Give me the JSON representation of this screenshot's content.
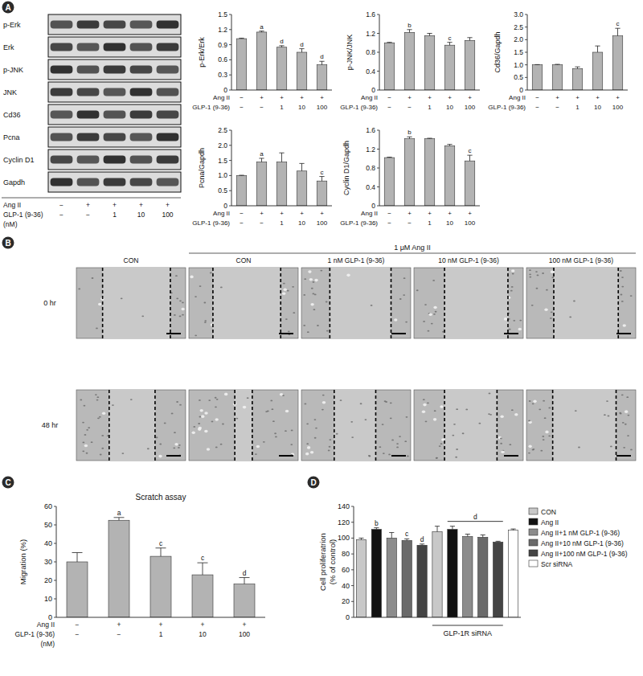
{
  "panel_labels": [
    "A",
    "B",
    "C",
    "D"
  ],
  "blot": {
    "row_labels": [
      "p-Erk",
      "Erk",
      "p-JNK",
      "JNK",
      "Cd36",
      "Pcna",
      "Cyclin D1",
      "Gapdh"
    ],
    "lane_rows": [
      "Ang II",
      "GLP-1 (9-36)"
    ],
    "lane_note": "(nM)",
    "lanes": [
      [
        "−",
        "−"
      ],
      [
        "+",
        "−"
      ],
      [
        "+",
        "1"
      ],
      [
        "+",
        "10"
      ],
      [
        "+",
        "100"
      ]
    ]
  },
  "scratch_images": {
    "header": "1 μM Ang II",
    "columns": [
      "CON",
      "CON",
      "1 nM GLP-1 (9-36)",
      "10 nM GLP-1 (9-36)",
      "100 nM GLP-1 (9-36)"
    ],
    "rows": [
      "0 hr",
      "48 hr"
    ]
  },
  "chart_data": [
    {
      "type": "bar",
      "y_label": "p-Erk/Erk",
      "categories": [
        [
          "−",
          "−"
        ],
        [
          "+",
          "−"
        ],
        [
          "+",
          "1"
        ],
        [
          "+",
          "10"
        ],
        [
          "+",
          "100"
        ]
      ],
      "category_rows": [
        "Ang II",
        "GLP-1 (9-36)"
      ],
      "values": [
        1.02,
        1.15,
        0.85,
        0.75,
        0.5
      ],
      "errors": [
        0.01,
        0.02,
        0.03,
        0.07,
        0.07
      ],
      "annotations": [
        null,
        "a",
        "d",
        "d",
        "d"
      ],
      "color": "#b3b3b3",
      "ylim": [
        0,
        1.5
      ],
      "yticks": [
        0,
        0.3,
        0.6,
        0.9,
        1.2,
        1.5
      ]
    },
    {
      "type": "bar",
      "y_label": "p-JNK/JNK",
      "categories": [
        [
          "−",
          "−"
        ],
        [
          "+",
          "−"
        ],
        [
          "+",
          "1"
        ],
        [
          "+",
          "10"
        ],
        [
          "+",
          "100"
        ]
      ],
      "category_rows": [
        "Ang II",
        "GLP-1 (9-36)"
      ],
      "values": [
        1.0,
        1.22,
        1.15,
        0.95,
        1.05
      ],
      "errors": [
        0.01,
        0.06,
        0.05,
        0.06,
        0.06
      ],
      "annotations": [
        null,
        "b",
        null,
        "c",
        null
      ],
      "color": "#b3b3b3",
      "ylim": [
        0,
        1.6
      ],
      "yticks": [
        0,
        0.4,
        0.8,
        1.2,
        1.6
      ]
    },
    {
      "type": "bar",
      "y_label": "Cd36/Gapdh",
      "categories": [
        [
          "−",
          "−"
        ],
        [
          "+",
          "−"
        ],
        [
          "+",
          "1"
        ],
        [
          "+",
          "10"
        ],
        [
          "+",
          "100"
        ]
      ],
      "category_rows": [
        "Ang II",
        "GLP-1 (9-36)"
      ],
      "values": [
        1.0,
        1.0,
        0.85,
        1.5,
        2.15
      ],
      "errors": [
        0.01,
        0.02,
        0.07,
        0.25,
        0.3
      ],
      "annotations": [
        null,
        null,
        null,
        null,
        "c"
      ],
      "color": "#b3b3b3",
      "ylim": [
        0,
        3
      ],
      "yticks": [
        0,
        0.5,
        {
          "value": 1,
          "label": "1.0"
        },
        1.5,
        {
          "value": 2,
          "label": "2.0"
        },
        2.5,
        {
          "value": 3,
          "label": "3.0"
        }
      ]
    },
    {
      "type": "bar",
      "y_label": "Pcna/Gapdh",
      "categories": [
        [
          "−",
          "−"
        ],
        [
          "+",
          "−"
        ],
        [
          "+",
          "1"
        ],
        [
          "+",
          "10"
        ],
        [
          "+",
          "100"
        ]
      ],
      "category_rows": [
        "Ang II",
        "GLP-1 (9-36)"
      ],
      "values": [
        1.0,
        1.45,
        1.45,
        1.15,
        0.82
      ],
      "errors": [
        0.01,
        0.12,
        0.3,
        0.25,
        0.15
      ],
      "annotations": [
        null,
        "a",
        null,
        null,
        "c"
      ],
      "color": "#b3b3b3",
      "ylim": [
        0,
        2.5
      ],
      "yticks": [
        0,
        0.5,
        {
          "value": 1,
          "label": "1.0"
        },
        1.5,
        {
          "value": 2,
          "label": "2.0"
        },
        2.5
      ]
    },
    {
      "type": "bar",
      "y_label": "Cyclin D1/Gapdh",
      "categories": [
        [
          "−",
          "−"
        ],
        [
          "+",
          "−"
        ],
        [
          "+",
          "1"
        ],
        [
          "+",
          "10"
        ],
        [
          "+",
          "100"
        ]
      ],
      "category_rows": [
        "Ang II",
        "GLP-1 (9-36)"
      ],
      "values": [
        1.02,
        1.42,
        1.42,
        1.27,
        0.95
      ],
      "errors": [
        0.01,
        0.04,
        0.01,
        0.03,
        0.12
      ],
      "annotations": [
        null,
        "b",
        null,
        null,
        "c"
      ],
      "color": "#b3b3b3",
      "ylim": [
        0,
        1.6
      ],
      "yticks": [
        0,
        0.4,
        0.8,
        1.2,
        1.6
      ]
    },
    {
      "type": "bar",
      "title": "Scratch assay",
      "y_label": "Migration (%)",
      "categories": [
        [
          "−",
          "−"
        ],
        [
          "+",
          "−"
        ],
        [
          "+",
          "1"
        ],
        [
          "+",
          "10"
        ],
        [
          "+",
          "100"
        ]
      ],
      "category_rows": [
        "Ang II",
        "GLP-1 (9-36)"
      ],
      "row_note": "(nM)",
      "values": [
        30,
        52.5,
        33,
        23,
        18
      ],
      "errors": [
        5,
        1.5,
        4.5,
        6.5,
        3.5
      ],
      "annotations": [
        null,
        "a",
        "c",
        "c",
        "d"
      ],
      "color": "#b3b3b3",
      "ylim": [
        0,
        60
      ],
      "yticks": [
        0,
        10,
        20,
        30,
        40,
        50,
        60
      ]
    },
    {
      "type": "bar",
      "y_label": [
        "Cell proliferatrion",
        "(% of control)"
      ],
      "categories": [
        null,
        null,
        null,
        null,
        null,
        null,
        null,
        null,
        null,
        null,
        null
      ],
      "values": [
        98,
        111,
        100,
        97,
        91,
        108,
        111,
        102,
        101,
        95,
        110
      ],
      "errors": [
        2,
        2,
        7,
        2,
        1.5,
        7,
        4,
        3,
        3,
        1,
        1.5
      ],
      "annotations": [
        null,
        "b",
        null,
        "c",
        "d",
        null,
        null,
        null,
        null,
        null,
        null
      ],
      "colors": [
        "#c8c8c8",
        "#111111",
        "#8c8c8c",
        "#6a6a6a",
        "#444444",
        "#c8c8c8",
        "#111111",
        "#8c8c8c",
        "#6a6a6a",
        "#444444",
        "#ffffff"
      ],
      "legend": "right",
      "legend_entries": [
        {
          "name": "CON",
          "color": "#c8c8c8"
        },
        {
          "name": "Ang II",
          "color": "#111111"
        },
        {
          "name": "Ang II+1 nM GLP-1 (9-36)",
          "color": "#8c8c8c"
        },
        {
          "name": "Ang II+10 nM GLP-1 (9-36)",
          "color": "#6a6a6a"
        },
        {
          "name": "Ang II+100 nM GLP-1 (9-36)",
          "color": "#444444"
        },
        {
          "name": "Scr siRNA",
          "color": "#ffffff"
        }
      ],
      "groups": [
        {
          "label": "GLP-1R siRNA",
          "start": 5,
          "end": 9
        }
      ],
      "annotation_lines": [
        {
          "label": "d",
          "start": 6,
          "end": 9
        }
      ],
      "ylim": [
        0,
        140
      ],
      "yticks": [
        0,
        20,
        40,
        60,
        80,
        100,
        120,
        140
      ]
    }
  ]
}
